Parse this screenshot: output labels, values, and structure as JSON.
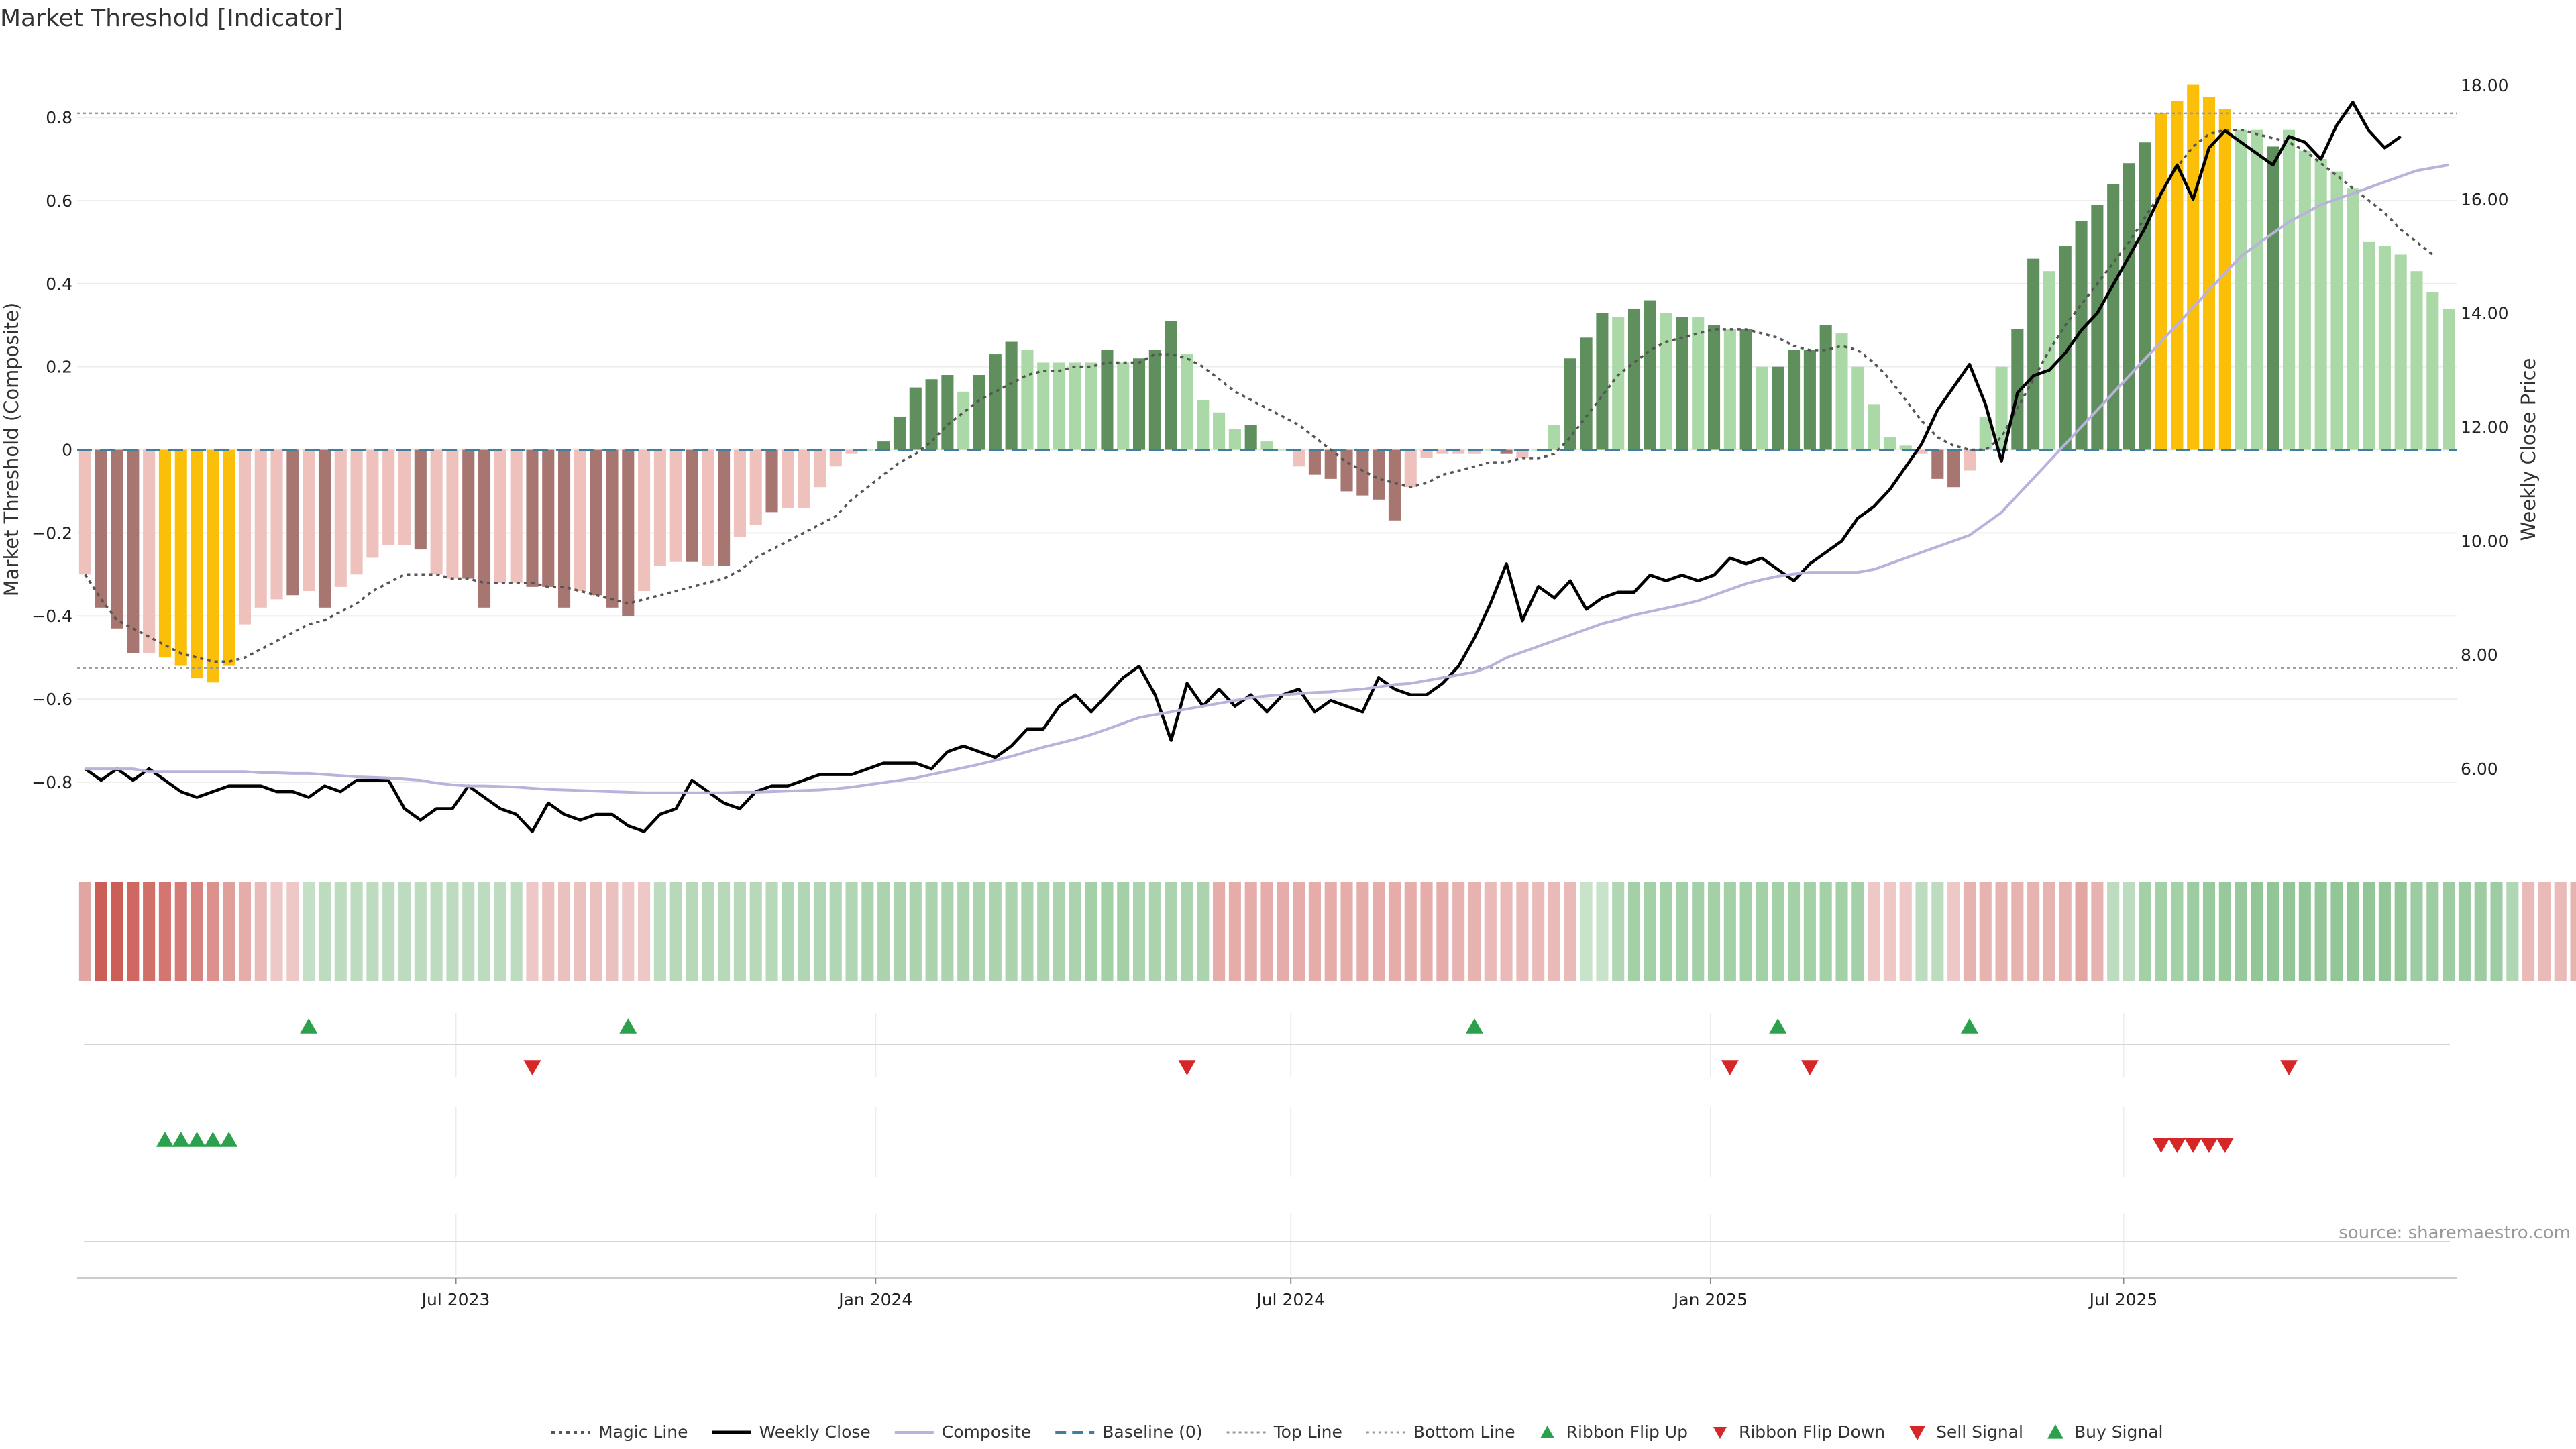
{
  "chart_data": {
    "type": "bar",
    "title": "Market Threshold [Indicator]",
    "ylabel": "Market Threshold (Composite)",
    "y2label": "Weekly Close Price",
    "ylim": [
      -0.96,
      0.96
    ],
    "y2lim": [
      4.6,
      18.6
    ],
    "y_ticks": [
      "0.8",
      "0.6",
      "0.4",
      "0.2",
      "0",
      "−0.2",
      "−0.4",
      "−0.6",
      "−0.8"
    ],
    "y_tick_values": [
      0.8,
      0.6,
      0.4,
      0.2,
      0,
      -0.2,
      -0.4,
      -0.6,
      -0.8
    ],
    "y2_ticks": [
      "18.00",
      "16.00",
      "14.00",
      "12.00",
      "10.00",
      "8.00",
      "6.00"
    ],
    "y2_tick_values": [
      18,
      16,
      14,
      12,
      10,
      8,
      6
    ],
    "x_start": "2023-01-16",
    "x_ticks": [
      {
        "date": "2023-07-01",
        "label": "Jul 2023"
      },
      {
        "date": "2024-01-01",
        "label": "Jan 2024"
      },
      {
        "date": "2024-07-01",
        "label": "Jul 2024"
      },
      {
        "date": "2025-01-01",
        "label": "Jan 2025"
      },
      {
        "date": "2025-07-01",
        "label": "Jul 2025"
      }
    ],
    "top_line": 0.81,
    "bottom_line": -0.525,
    "composite_bars": [
      -0.3,
      -0.38,
      -0.43,
      -0.49,
      -0.49,
      -0.5,
      -0.52,
      -0.55,
      -0.56,
      -0.52,
      -0.42,
      -0.38,
      -0.36,
      -0.35,
      -0.34,
      -0.38,
      -0.33,
      -0.3,
      -0.26,
      -0.23,
      -0.23,
      -0.24,
      -0.3,
      -0.31,
      -0.31,
      -0.38,
      -0.32,
      -0.32,
      -0.33,
      -0.33,
      -0.38,
      -0.34,
      -0.35,
      -0.38,
      -0.4,
      -0.34,
      -0.28,
      -0.27,
      -0.27,
      -0.28,
      -0.28,
      -0.21,
      -0.18,
      -0.15,
      -0.14,
      -0.14,
      -0.09,
      -0.04,
      -0.01,
      0.0,
      0.02,
      0.08,
      0.15,
      0.17,
      0.18,
      0.14,
      0.18,
      0.23,
      0.26,
      0.24,
      0.21,
      0.21,
      0.21,
      0.21,
      0.24,
      0.21,
      0.22,
      0.24,
      0.31,
      0.23,
      0.12,
      0.09,
      0.05,
      0.06,
      0.02,
      0.0,
      -0.04,
      -0.06,
      -0.07,
      -0.1,
      -0.11,
      -0.12,
      -0.17,
      -0.09,
      -0.02,
      -0.01,
      -0.01,
      -0.01,
      0.0,
      -0.01,
      -0.02,
      0.0,
      0.06,
      0.22,
      0.27,
      0.33,
      0.32,
      0.34,
      0.36,
      0.33,
      0.32,
      0.32,
      0.3,
      0.29,
      0.29,
      0.2,
      0.2,
      0.24,
      0.24,
      0.3,
      0.28,
      0.2,
      0.11,
      0.03,
      0.01,
      -0.01,
      -0.07,
      -0.09,
      -0.05,
      0.08,
      0.2,
      0.29,
      0.46,
      0.43,
      0.49,
      0.55,
      0.59,
      0.64,
      0.69,
      0.74,
      0.81,
      0.84,
      0.88,
      0.85,
      0.82,
      0.77,
      0.77,
      0.73,
      0.77,
      0.72,
      0.7,
      0.67,
      0.63,
      0.5,
      0.49,
      0.47,
      0.43,
      0.38,
      0.34
    ],
    "bar_tone": [
      "l",
      "d",
      "d",
      "d",
      "l",
      "y",
      "y",
      "y",
      "y",
      "y",
      "l",
      "l",
      "l",
      "d",
      "l",
      "d",
      "l",
      "l",
      "l",
      "l",
      "l",
      "d",
      "l",
      "l",
      "d",
      "d",
      "l",
      "l",
      "d",
      "d",
      "d",
      "l",
      "d",
      "d",
      "d",
      "l",
      "l",
      "l",
      "d",
      "l",
      "d",
      "l",
      "l",
      "d",
      "l",
      "l",
      "l",
      "l",
      "l",
      "l",
      "d",
      "d",
      "d",
      "d",
      "d",
      "l",
      "d",
      "d",
      "d",
      "l",
      "l",
      "l",
      "l",
      "l",
      "d",
      "l",
      "d",
      "d",
      "d",
      "l",
      "l",
      "l",
      "l",
      "d",
      "l",
      "l",
      "l",
      "d",
      "d",
      "d",
      "d",
      "d",
      "d",
      "l",
      "l",
      "l",
      "l",
      "l",
      "l",
      "d",
      "l",
      "l",
      "l",
      "d",
      "d",
      "d",
      "l",
      "d",
      "d",
      "l",
      "d",
      "l",
      "d",
      "l",
      "d",
      "l",
      "d",
      "d",
      "d",
      "d",
      "l",
      "l",
      "l",
      "l",
      "l",
      "l",
      "d",
      "d",
      "l",
      "l",
      "l",
      "d",
      "d",
      "l",
      "d",
      "d",
      "d",
      "d",
      "d",
      "d",
      "y",
      "y",
      "y",
      "y",
      "y",
      "l",
      "l",
      "d",
      "l",
      "l",
      "l",
      "l",
      "l",
      "l",
      "l",
      "l",
      "l",
      "l",
      "l"
    ],
    "ribbon": [
      -0.4,
      -0.92,
      -0.92,
      -0.85,
      -0.8,
      -0.75,
      -0.7,
      -0.65,
      -0.55,
      -0.45,
      -0.35,
      -0.25,
      -0.15,
      -0.15,
      0.25,
      0.3,
      0.3,
      0.3,
      0.3,
      0.3,
      0.3,
      0.3,
      0.3,
      0.3,
      0.3,
      0.3,
      0.3,
      0.3,
      -0.15,
      -0.2,
      -0.2,
      -0.2,
      -0.2,
      -0.2,
      -0.15,
      -0.15,
      0.3,
      0.35,
      0.35,
      0.35,
      0.35,
      0.35,
      0.35,
      0.35,
      0.4,
      0.4,
      0.4,
      0.4,
      0.4,
      0.45,
      0.45,
      0.45,
      0.45,
      0.45,
      0.45,
      0.45,
      0.45,
      0.45,
      0.45,
      0.45,
      0.45,
      0.45,
      0.45,
      0.5,
      0.5,
      0.5,
      0.45,
      0.45,
      0.45,
      0.45,
      0.45,
      -0.35,
      -0.35,
      -0.35,
      -0.35,
      -0.35,
      -0.35,
      -0.35,
      -0.35,
      -0.35,
      -0.35,
      -0.35,
      -0.35,
      -0.35,
      -0.35,
      -0.35,
      -0.3,
      -0.3,
      -0.25,
      -0.25,
      -0.25,
      -0.25,
      -0.25,
      -0.25,
      0.2,
      0.2,
      0.4,
      0.5,
      0.5,
      0.5,
      0.5,
      0.5,
      0.5,
      0.5,
      0.5,
      0.5,
      0.5,
      0.5,
      0.5,
      0.5,
      0.5,
      0.5,
      -0.15,
      -0.15,
      -0.15,
      0.3,
      0.3,
      -0.15,
      -0.3,
      -0.3,
      -0.3,
      -0.3,
      -0.3,
      -0.3,
      -0.3,
      -0.4,
      -0.3,
      0.3,
      0.3,
      0.5,
      0.5,
      0.5,
      0.55,
      0.6,
      0.6,
      0.6,
      0.65,
      0.65,
      0.65,
      0.65,
      0.65,
      0.65,
      0.65,
      0.65,
      0.65,
      0.65,
      0.55,
      0.55,
      0.55,
      0.55,
      0.55,
      0.55,
      0.4,
      -0.25,
      -0.25,
      -0.25,
      -0.3,
      -0.3,
      -0.35
    ],
    "series": [
      {
        "name": "Magic Line",
        "axis": "left",
        "style": "dotted",
        "color": "#555555",
        "values": [
          -0.3,
          -0.36,
          -0.41,
          -0.43,
          -0.45,
          -0.47,
          -0.49,
          -0.5,
          -0.51,
          -0.51,
          -0.5,
          -0.48,
          -0.46,
          -0.44,
          -0.42,
          -0.41,
          -0.39,
          -0.37,
          -0.34,
          -0.32,
          -0.3,
          -0.3,
          -0.3,
          -0.31,
          -0.31,
          -0.32,
          -0.32,
          -0.32,
          -0.32,
          -0.33,
          -0.33,
          -0.34,
          -0.35,
          -0.36,
          -0.37,
          -0.36,
          -0.35,
          -0.34,
          -0.33,
          -0.32,
          -0.31,
          -0.29,
          -0.26,
          -0.24,
          -0.22,
          -0.2,
          -0.18,
          -0.16,
          -0.12,
          -0.09,
          -0.06,
          -0.03,
          -0.01,
          0.02,
          0.06,
          0.09,
          0.12,
          0.14,
          0.16,
          0.18,
          0.19,
          0.19,
          0.2,
          0.2,
          0.21,
          0.21,
          0.21,
          0.23,
          0.23,
          0.22,
          0.2,
          0.17,
          0.14,
          0.12,
          0.1,
          0.08,
          0.06,
          0.03,
          0.0,
          -0.03,
          -0.05,
          -0.07,
          -0.08,
          -0.09,
          -0.08,
          -0.06,
          -0.05,
          -0.04,
          -0.03,
          -0.03,
          -0.02,
          -0.02,
          -0.01,
          0.03,
          0.08,
          0.13,
          0.18,
          0.21,
          0.24,
          0.26,
          0.27,
          0.28,
          0.29,
          0.29,
          0.29,
          0.28,
          0.27,
          0.25,
          0.24,
          0.24,
          0.25,
          0.24,
          0.21,
          0.17,
          0.12,
          0.07,
          0.03,
          0.01,
          0.0,
          0.0,
          0.03,
          0.1,
          0.17,
          0.24,
          0.3,
          0.35,
          0.4,
          0.45,
          0.5,
          0.56,
          0.62,
          0.68,
          0.73,
          0.76,
          0.77,
          0.77,
          0.76,
          0.75,
          0.74,
          0.72,
          0.69,
          0.66,
          0.63,
          0.6,
          0.57,
          0.53,
          0.5,
          0.47
        ]
      },
      {
        "name": "Weekly Close",
        "axis": "right",
        "style": "solid",
        "color": "#000000",
        "values": [
          6.0,
          5.8,
          6.0,
          5.8,
          6.0,
          5.8,
          5.6,
          5.5,
          5.6,
          5.7,
          5.7,
          5.7,
          5.6,
          5.6,
          5.5,
          5.7,
          5.6,
          5.8,
          5.8,
          5.8,
          5.3,
          5.1,
          5.3,
          5.3,
          5.7,
          5.5,
          5.3,
          5.2,
          4.9,
          5.4,
          5.2,
          5.1,
          5.2,
          5.2,
          5.0,
          4.9,
          5.2,
          5.3,
          5.8,
          5.6,
          5.4,
          5.3,
          5.6,
          5.7,
          5.7,
          5.8,
          5.9,
          5.9,
          5.9,
          6.0,
          6.1,
          6.1,
          6.1,
          6.0,
          6.3,
          6.4,
          6.3,
          6.2,
          6.4,
          6.7,
          6.7,
          7.1,
          7.3,
          7.0,
          7.3,
          7.6,
          7.8,
          7.3,
          6.5,
          7.5,
          7.1,
          7.4,
          7.1,
          7.3,
          7.0,
          7.3,
          7.4,
          7.0,
          7.2,
          7.1,
          7.0,
          7.6,
          7.4,
          7.3,
          7.3,
          7.5,
          7.8,
          8.3,
          8.9,
          9.6,
          8.6,
          9.2,
          9.0,
          9.3,
          8.8,
          9.0,
          9.1,
          9.1,
          9.4,
          9.3,
          9.4,
          9.3,
          9.4,
          9.7,
          9.6,
          9.7,
          9.5,
          9.3,
          9.6,
          9.8,
          10.0,
          10.4,
          10.6,
          10.9,
          11.3,
          11.7,
          12.3,
          12.7,
          13.1,
          12.4,
          11.4,
          12.6,
          12.9,
          13.0,
          13.3,
          13.7,
          14.0,
          14.5,
          15.0,
          15.5,
          16.1,
          16.6,
          16.0,
          16.9,
          17.2,
          17.0,
          16.8,
          16.6,
          17.1,
          17.0,
          16.7,
          17.3,
          17.7,
          17.2,
          16.9,
          17.1
        ],
        "fix_note": ""
      },
      {
        "name": "Composite",
        "axis": "right",
        "style": "solid",
        "color": "#b9b3dc",
        "values": [
          6.0,
          6.0,
          6.0,
          6.0,
          5.95,
          5.95,
          5.95,
          5.95,
          5.95,
          5.95,
          5.95,
          5.93,
          5.93,
          5.92,
          5.92,
          5.9,
          5.88,
          5.86,
          5.85,
          5.84,
          5.82,
          5.8,
          5.75,
          5.72,
          5.7,
          5.7,
          5.69,
          5.68,
          5.66,
          5.64,
          5.63,
          5.62,
          5.61,
          5.6,
          5.59,
          5.58,
          5.58,
          5.58,
          5.58,
          5.58,
          5.58,
          5.59,
          5.59,
          5.6,
          5.61,
          5.62,
          5.63,
          5.65,
          5.68,
          5.72,
          5.76,
          5.8,
          5.84,
          5.9,
          5.96,
          6.02,
          6.08,
          6.15,
          6.22,
          6.3,
          6.38,
          6.45,
          6.52,
          6.6,
          6.7,
          6.8,
          6.9,
          6.95,
          7.0,
          7.05,
          7.1,
          7.15,
          7.2,
          7.25,
          7.28,
          7.3,
          7.32,
          7.34,
          7.35,
          7.38,
          7.4,
          7.44,
          7.48,
          7.5,
          7.55,
          7.6,
          7.65,
          7.7,
          7.8,
          7.95,
          8.05,
          8.15,
          8.25,
          8.35,
          8.45,
          8.55,
          8.62,
          8.7,
          8.76,
          8.82,
          8.88,
          8.95,
          9.05,
          9.15,
          9.25,
          9.32,
          9.38,
          9.42,
          9.45,
          9.45,
          9.45,
          9.45,
          9.5,
          9.6,
          9.7,
          9.8,
          9.9,
          10.0,
          10.1,
          10.3,
          10.5,
          10.8,
          11.1,
          11.4,
          11.7,
          12.0,
          12.3,
          12.6,
          12.9,
          13.2,
          13.5,
          13.8,
          14.1,
          14.4,
          14.7,
          15.0,
          15.2,
          15.4,
          15.6,
          15.75,
          15.9,
          16.0,
          16.1,
          16.2,
          16.3,
          16.4,
          16.5,
          16.55,
          16.6
        ]
      }
    ],
    "baseline": 0,
    "ribbon_flip_up_idx": [
      14,
      34,
      87,
      106,
      118
    ],
    "ribbon_flip_down_idx": [
      28,
      69,
      103,
      108,
      138
    ],
    "buy_signal_idx": [
      5,
      6,
      7,
      8,
      9
    ],
    "sell_signal_idx": [
      130,
      131,
      132,
      133,
      134
    ],
    "legend": [
      "Magic Line",
      "Weekly Close",
      "Composite",
      "Baseline (0)",
      "Top Line",
      "Bottom Line",
      "Ribbon Flip Up",
      "Ribbon Flip Down",
      "Sell Signal",
      "Buy Signal"
    ],
    "legend_position": "bottom-center",
    "grid": true,
    "colors": {
      "bar_neg_light": "#efc1bc",
      "bar_neg_dark": "#a87670",
      "bar_pos_light": "#aad8a6",
      "bar_pos_dark": "#5e8f5c",
      "bar_highlight": "#fbbf09",
      "ribbon_neg_strong": "#c8534d",
      "ribbon_pos_strong": "#68b06e",
      "up_marker": "#2ca04c",
      "down_marker": "#d62728"
    }
  },
  "source_note": "source: sharemaestro.com"
}
